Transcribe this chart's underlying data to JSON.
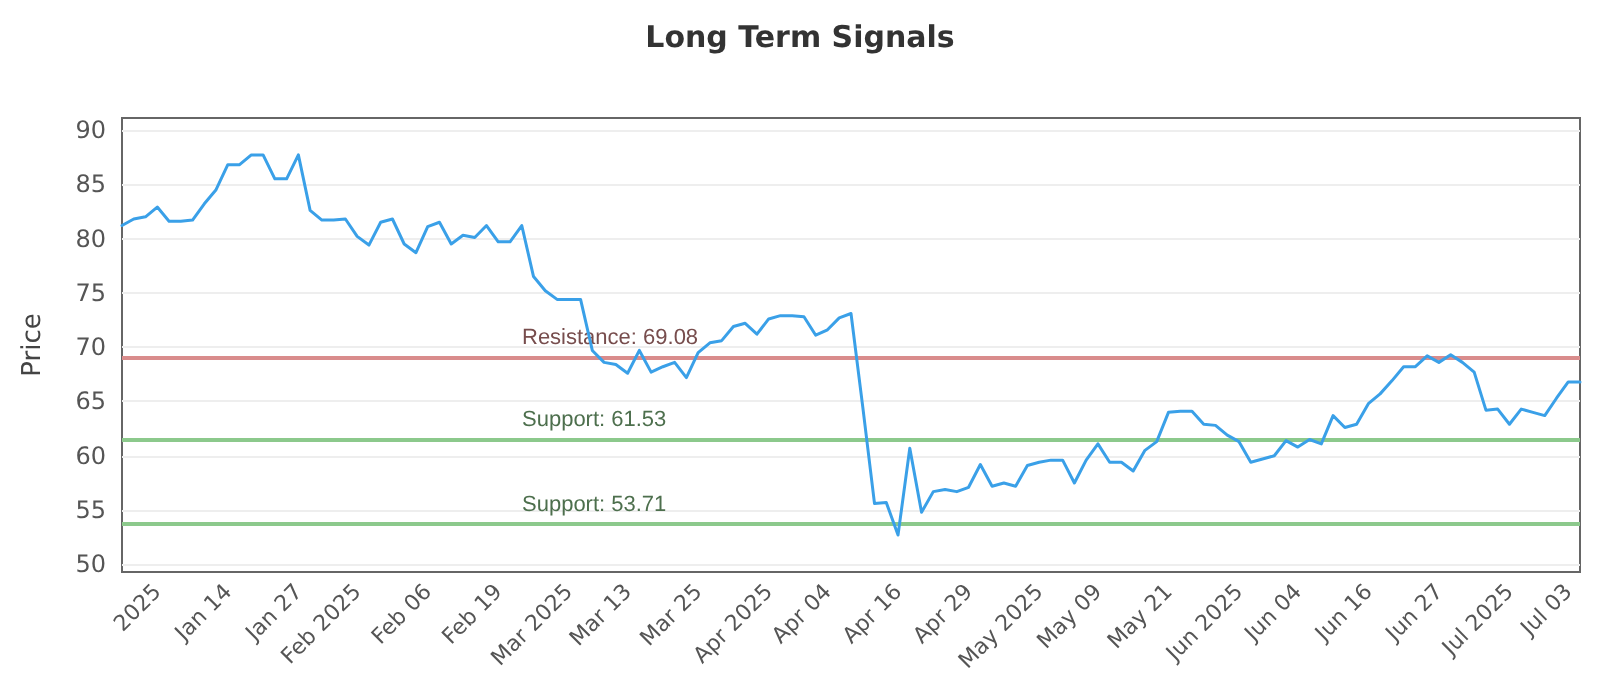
{
  "chart_data": {
    "type": "line",
    "title": "Long Term Signals",
    "ylabel": "Price",
    "categories": [
      null,
      null,
      null,
      "2025",
      null,
      null,
      null,
      null,
      null,
      "Jan 14",
      null,
      null,
      null,
      null,
      null,
      "Jan 27",
      null,
      null,
      null,
      null,
      "Feb 2025",
      null,
      null,
      null,
      null,
      null,
      "Feb 06",
      null,
      null,
      null,
      null,
      null,
      "Feb 19",
      null,
      null,
      null,
      null,
      null,
      "Mar 2025",
      null,
      null,
      null,
      null,
      "Mar 13",
      null,
      null,
      null,
      null,
      null,
      "Mar 25",
      null,
      null,
      null,
      null,
      null,
      "Apr 2025",
      null,
      null,
      null,
      null,
      "Apr 04",
      null,
      null,
      null,
      null,
      null,
      "Apr 16",
      null,
      null,
      null,
      null,
      null,
      "Apr 29",
      null,
      null,
      null,
      null,
      null,
      "May 2025",
      null,
      null,
      null,
      null,
      "May 09",
      null,
      null,
      null,
      null,
      null,
      "May 21",
      null,
      null,
      null,
      null,
      null,
      "Jun 2025",
      null,
      null,
      null,
      null,
      "Jun 04",
      null,
      null,
      null,
      null,
      null,
      "Jun 16",
      null,
      null,
      null,
      null,
      null,
      "Jun 27",
      null,
      null,
      null,
      null,
      null,
      "Jul 2025",
      null,
      null,
      null,
      null,
      "Jul 03",
      null
    ],
    "series": [
      {
        "color": "#3aa0e8",
        "values": [
          81.2,
          81.8,
          82.0,
          82.9,
          81.6,
          81.6,
          81.7,
          83.2,
          84.5,
          86.8,
          86.8,
          87.7,
          87.7,
          85.5,
          85.5,
          87.7,
          82.6,
          81.7,
          81.7,
          81.8,
          80.2,
          79.4,
          81.5,
          81.8,
          79.5,
          78.7,
          81.1,
          81.5,
          79.5,
          80.3,
          80.1,
          81.2,
          79.7,
          79.7,
          81.2,
          76.5,
          75.2,
          74.4,
          74.4,
          74.4,
          69.7,
          68.6,
          68.4,
          67.6,
          69.7,
          67.7,
          68.2,
          68.6,
          67.2,
          69.5,
          70.4,
          70.6,
          71.9,
          72.2,
          71.2,
          72.6,
          72.9,
          72.9,
          72.8,
          71.1,
          71.6,
          72.7,
          73.1,
          64.5,
          55.6,
          55.7,
          52.7,
          60.7,
          54.8,
          56.7,
          56.9,
          56.7,
          57.1,
          59.2,
          57.2,
          57.5,
          57.2,
          59.1,
          59.4,
          59.6,
          59.6,
          57.5,
          59.6,
          61.1,
          59.4,
          59.4,
          58.6,
          60.5,
          61.3,
          64.0,
          64.1,
          64.1,
          62.9,
          62.8,
          61.9,
          61.3,
          59.4,
          59.7,
          60.0,
          61.4,
          60.8,
          61.5,
          61.1,
          63.7,
          62.6,
          62.9,
          64.8,
          65.7,
          66.9,
          68.2,
          68.2,
          69.2,
          68.6,
          69.3,
          68.6,
          67.7,
          64.2,
          64.3,
          62.9,
          64.3,
          64.0,
          63.7,
          65.3,
          66.8,
          66.8
        ]
      }
    ],
    "ylim": [
      49.3,
      91.1
    ],
    "yticks": [
      50,
      55,
      60,
      65,
      70,
      75,
      80,
      85,
      90
    ],
    "grid": "y",
    "marker": "none",
    "line_style": "solid",
    "ref_lines": [
      {
        "axis": "y",
        "value": 69.08,
        "label": "Resistance: 69.08",
        "color": "#d98c8c"
      },
      {
        "axis": "y",
        "value": 61.53,
        "label": "Support: 61.53",
        "color": "#8cc98c"
      },
      {
        "axis": "y",
        "value": 53.71,
        "label": "Support: 53.71",
        "color": "#8cc98c"
      }
    ]
  }
}
